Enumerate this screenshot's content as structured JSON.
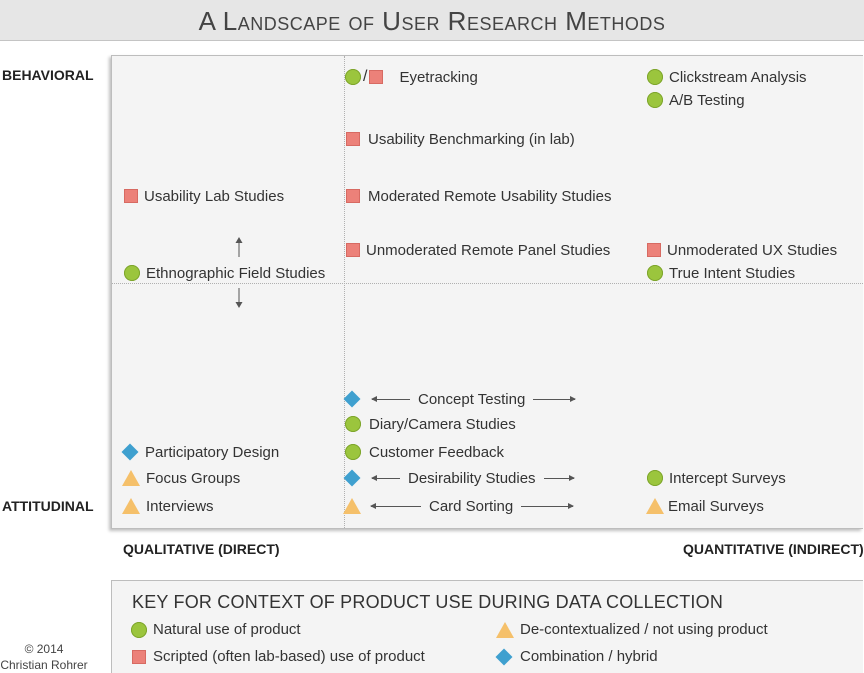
{
  "title": "A Landscape of User Research Methods",
  "axes": {
    "y_top": "BEHAVIORAL",
    "y_bottom": "ATTITUDINAL",
    "x_left": "QUALITATIVE (DIRECT)",
    "x_right": "QUANTITATIVE (INDIRECT)"
  },
  "methods": {
    "eyetracking": {
      "label": "Eyetracking",
      "symbols": [
        "natural",
        "scripted"
      ]
    },
    "clickstream": {
      "label": "Clickstream Analysis",
      "symbol": "natural"
    },
    "ab_testing": {
      "label": "A/B Testing",
      "symbol": "natural"
    },
    "usability_benchmarking": {
      "label": "Usability Benchmarking (in lab)",
      "symbol": "scripted"
    },
    "usability_lab": {
      "label": "Usability Lab Studies",
      "symbol": "scripted"
    },
    "moderated_remote": {
      "label": "Moderated Remote Usability Studies",
      "symbol": "scripted"
    },
    "unmoderated_panel": {
      "label": "Unmoderated Remote Panel Studies",
      "symbol": "scripted"
    },
    "unmoderated_ux": {
      "label": "Unmoderated UX Studies",
      "symbol": "scripted"
    },
    "ethnographic": {
      "label": "Ethnographic Field Studies",
      "symbol": "natural"
    },
    "true_intent": {
      "label": "True Intent Studies",
      "symbol": "natural"
    },
    "concept_testing": {
      "label": "Concept Testing",
      "symbol": "hybrid"
    },
    "diary": {
      "label": "Diary/Camera Studies",
      "symbol": "natural"
    },
    "participatory": {
      "label": "Participatory Design",
      "symbol": "hybrid"
    },
    "customer_feedback": {
      "label": "Customer Feedback",
      "symbol": "natural"
    },
    "focus_groups": {
      "label": "Focus Groups",
      "symbol": "decontextualized"
    },
    "desirability": {
      "label": "Desirability Studies",
      "symbol": "hybrid"
    },
    "intercept": {
      "label": "Intercept Surveys",
      "symbol": "natural"
    },
    "interviews": {
      "label": "Interviews",
      "symbol": "decontextualized"
    },
    "card_sorting": {
      "label": "Card Sorting",
      "symbol": "decontextualized"
    },
    "email_surveys": {
      "label": "Email Surveys",
      "symbol": "decontextualized"
    }
  },
  "key": {
    "title": "KEY FOR CONTEXT OF PRODUCT USE DURING DATA COLLECTION",
    "natural": "Natural use of product",
    "scripted": "Scripted (often lab-based) use of product",
    "decontextualized": "De-contextualized / not using product",
    "hybrid": "Combination / hybrid"
  },
  "colors": {
    "natural": "#9bc53d",
    "scripted": "#ec8179",
    "decontextualized": "#f5c06a",
    "hybrid": "#3fa0cf"
  },
  "copyright": {
    "line1": "© 2014",
    "line2": "Christian Rohrer"
  }
}
